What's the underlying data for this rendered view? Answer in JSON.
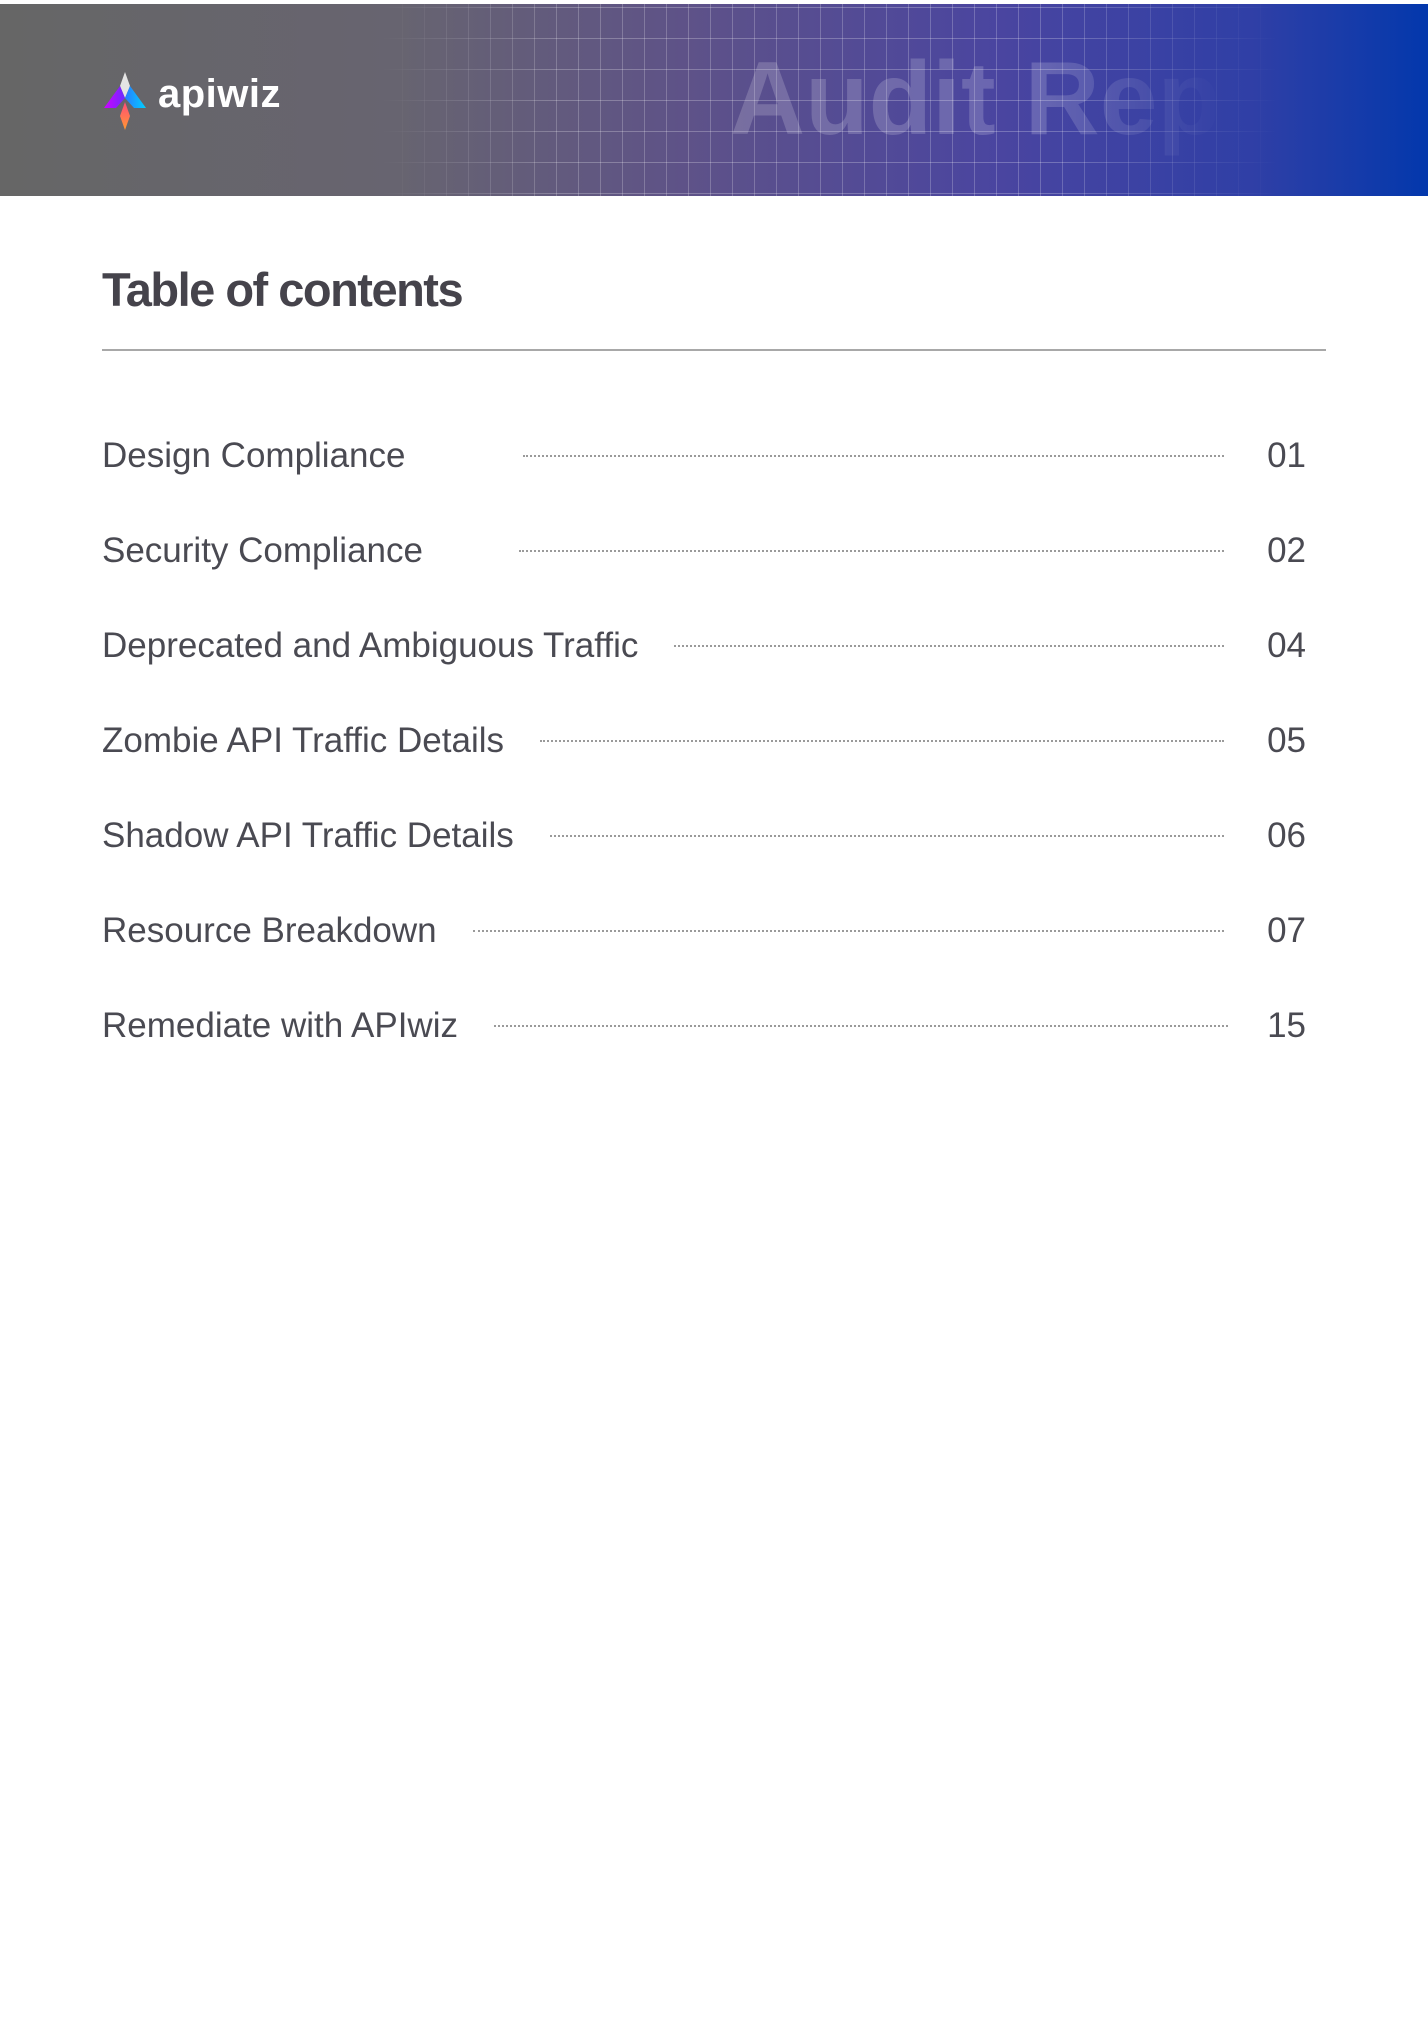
{
  "header": {
    "brand": "apiwiz",
    "watermark": "Audit Report",
    "colors": {
      "start": "#666666",
      "end": "#0338ac"
    }
  },
  "title": "Table of contents",
  "entries": [
    {
      "label": "Design Compliance",
      "page": "01"
    },
    {
      "label": "Security Compliance",
      "page": "02"
    },
    {
      "label": "Deprecated and Ambiguous Traffic",
      "page": "04"
    },
    {
      "label": "Zombie API Traffic Details",
      "page": "05"
    },
    {
      "label": "Shadow API Traffic Details",
      "page": "06"
    },
    {
      "label": "Resource Breakdown",
      "page": "07"
    },
    {
      "label": "Remediate with APIwiz",
      "page": "15"
    }
  ]
}
